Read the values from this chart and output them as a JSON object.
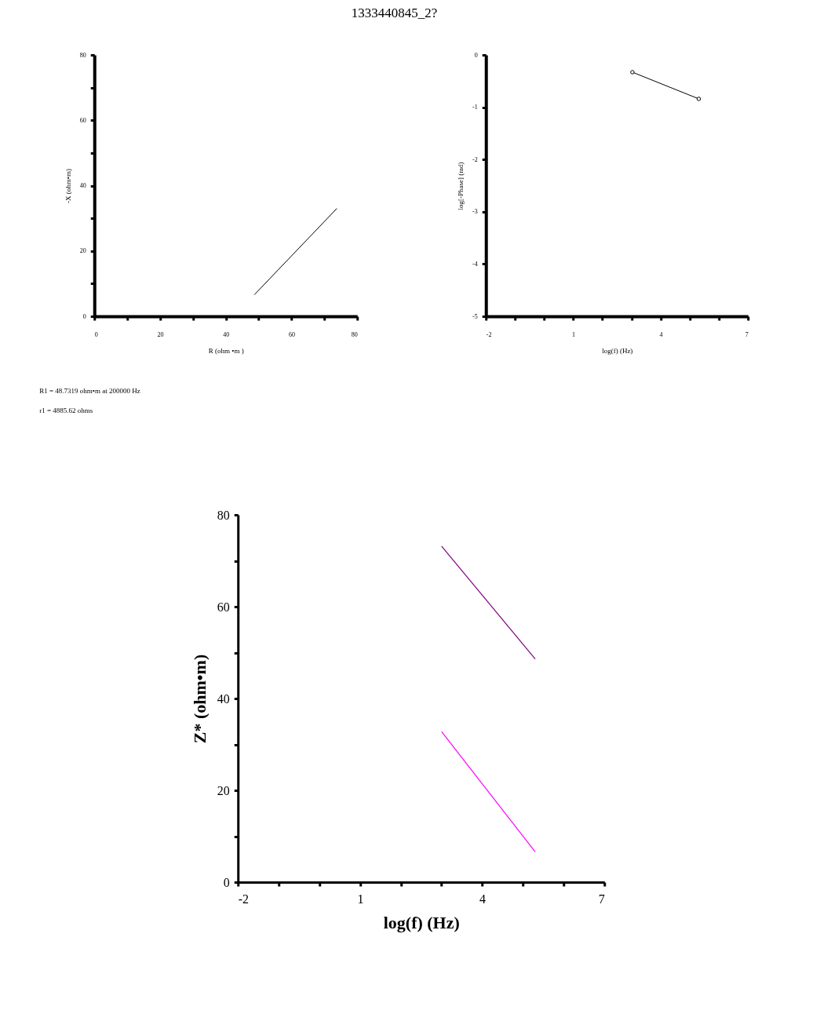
{
  "chart_data": [
    {
      "type": "line",
      "title": "1333440845_2?",
      "xlabel": "R (ohm •m )",
      "ylabel": "-X (ohm•m)",
      "series": [
        {
          "color": "#000000",
          "x": [
            48.7,
            73.8
          ],
          "values": [
            6.6,
            33
          ]
        }
      ],
      "xlim": [
        0,
        80
      ],
      "ylim": [
        0,
        80
      ],
      "xticks": [
        0,
        {
          "value": 10,
          "label": null
        },
        20,
        {
          "value": 30,
          "label": null
        },
        40,
        {
          "value": 50,
          "label": null
        },
        60,
        {
          "value": 70,
          "label": null
        },
        80
      ],
      "yticks": [
        0,
        {
          "value": 10,
          "label": null
        },
        20,
        {
          "value": 30,
          "label": null
        },
        40,
        {
          "value": 50,
          "label": null
        },
        60,
        {
          "value": 70,
          "label": null
        },
        80
      ],
      "grid": false,
      "marker": "none",
      "line_style": "solid",
      "annotations": [
        "R1 = 48.7319 ohm•m at 200000 Hz",
        "r1 = 4885.62 ohms"
      ]
    },
    {
      "type": "line",
      "xlabel": "log(f) (Hz)",
      "ylabel": "log[-Phase] (rad)",
      "series": [
        {
          "color": "#000000",
          "x": [
            3.03,
            5.31
          ],
          "values": [
            -0.33,
            -0.84
          ]
        }
      ],
      "xlim": [
        -2,
        7
      ],
      "ylim": [
        -5,
        0
      ],
      "xticks": [
        -2,
        {
          "value": -1,
          "label": null
        },
        {
          "value": 0,
          "label": null
        },
        1,
        {
          "value": 2,
          "label": null
        },
        {
          "value": 3,
          "label": null
        },
        4,
        {
          "value": 5,
          "label": null
        },
        {
          "value": 6,
          "label": null
        },
        7
      ],
      "yticks": [
        -5,
        -4,
        -3,
        -2,
        -1,
        0
      ],
      "grid": false,
      "marker": "circle",
      "line_style": "solid"
    },
    {
      "type": "line",
      "xlabel": "log(f) (Hz)",
      "ylabel": "Z* (ohm•m)",
      "series": [
        {
          "color": "#800080",
          "x": [
            3.0,
            5.3
          ],
          "values": [
            73.2,
            48.6
          ]
        },
        {
          "color": "#ff00ff",
          "x": [
            3.0,
            5.3
          ],
          "values": [
            32.8,
            6.6
          ]
        }
      ],
      "xlim": [
        -2,
        7
      ],
      "ylim": [
        0,
        80
      ],
      "xticks": [
        -2,
        {
          "value": -1,
          "label": null
        },
        {
          "value": 0,
          "label": null
        },
        1,
        {
          "value": 2,
          "label": null
        },
        {
          "value": 3,
          "label": null
        },
        4,
        {
          "value": 5,
          "label": null
        },
        {
          "value": 6,
          "label": null
        },
        7
      ],
      "yticks": [
        0,
        {
          "value": 10,
          "label": null
        },
        20,
        {
          "value": 30,
          "label": null
        },
        40,
        {
          "value": 50,
          "label": null
        },
        60,
        {
          "value": 70,
          "label": null
        },
        80
      ],
      "grid": false,
      "marker": "none",
      "line_style": "solid"
    }
  ]
}
